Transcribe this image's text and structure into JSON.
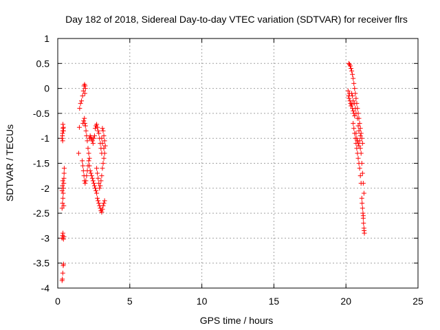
{
  "chart_data": {
    "type": "scatter",
    "title": "Day 182 of 2018, Sidereal Day-to-day VTEC variation (SDTVAR) for receiver flrs",
    "xlabel": "GPS time / hours",
    "ylabel": "SDTVAR / TECUs",
    "xlim": [
      0,
      25
    ],
    "ylim": [
      -4,
      1
    ],
    "xticks": [
      0,
      5,
      10,
      15,
      20,
      25
    ],
    "xtick_labels": [
      "0",
      "5",
      "10",
      "15",
      "20",
      "25"
    ],
    "yticks": [
      1,
      0.5,
      0,
      -0.5,
      -1,
      -1.5,
      -2,
      -2.5,
      -3,
      -3.5,
      -4
    ],
    "ytick_labels": [
      "1",
      "0.5",
      "0",
      "-0.5",
      "-1",
      "-1.5",
      "-2",
      "-2.5",
      "-3",
      "-3.5",
      "-4"
    ],
    "grid": true,
    "marker": "+",
    "marker_color": "#ff0000",
    "series": [
      {
        "name": "SDTVAR",
        "points": [
          [
            0.3,
            -3.85
          ],
          [
            0.32,
            -3.82
          ],
          [
            0.35,
            -3.7
          ],
          [
            0.38,
            -3.55
          ],
          [
            0.4,
            -3.52
          ],
          [
            0.3,
            -3.0
          ],
          [
            0.33,
            -2.95
          ],
          [
            0.36,
            -2.9
          ],
          [
            0.4,
            -3.02
          ],
          [
            0.43,
            -2.97
          ],
          [
            0.3,
            -2.4
          ],
          [
            0.33,
            -2.3
          ],
          [
            0.36,
            -2.2
          ],
          [
            0.38,
            -2.1
          ],
          [
            0.4,
            -2.0
          ],
          [
            0.42,
            -1.9
          ],
          [
            0.43,
            -1.8
          ],
          [
            0.44,
            -1.7
          ],
          [
            0.45,
            -1.6
          ],
          [
            0.42,
            -2.35
          ],
          [
            0.3,
            -2.05
          ],
          [
            0.32,
            -1.95
          ],
          [
            0.35,
            -1.85
          ],
          [
            0.3,
            -1.0
          ],
          [
            0.32,
            -0.95
          ],
          [
            0.33,
            -0.9
          ],
          [
            0.35,
            -0.85
          ],
          [
            0.37,
            -0.8
          ],
          [
            0.39,
            -0.78
          ],
          [
            0.4,
            -0.85
          ],
          [
            0.36,
            -0.72
          ],
          [
            0.34,
            -1.05
          ],
          [
            1.45,
            -1.3
          ],
          [
            1.5,
            -0.78
          ],
          [
            1.52,
            -0.4
          ],
          [
            1.58,
            -0.3
          ],
          [
            1.65,
            -0.25
          ],
          [
            1.72,
            -0.15
          ],
          [
            1.78,
            -0.05
          ],
          [
            1.82,
            0.05
          ],
          [
            1.86,
            0.08
          ],
          [
            1.9,
            0.05
          ],
          [
            1.92,
            0.0
          ],
          [
            1.88,
            -0.1
          ],
          [
            1.7,
            -1.45
          ],
          [
            1.74,
            -1.55
          ],
          [
            1.78,
            -1.65
          ],
          [
            1.82,
            -1.75
          ],
          [
            1.85,
            -1.85
          ],
          [
            1.9,
            -1.9
          ],
          [
            1.95,
            -1.85
          ],
          [
            2.0,
            -1.75
          ],
          [
            2.05,
            -1.65
          ],
          [
            2.1,
            -1.55
          ],
          [
            2.15,
            -1.45
          ],
          [
            1.75,
            -0.7
          ],
          [
            1.8,
            -0.65
          ],
          [
            1.85,
            -0.6
          ],
          [
            1.88,
            -0.7
          ],
          [
            1.92,
            -0.75
          ],
          [
            1.96,
            -0.85
          ],
          [
            2.0,
            -0.95
          ],
          [
            2.05,
            -1.05
          ],
          [
            2.1,
            -1.2
          ],
          [
            2.15,
            -1.3
          ],
          [
            2.2,
            -1.4
          ],
          [
            2.2,
            -1.55
          ],
          [
            2.25,
            -1.65
          ],
          [
            2.3,
            -1.7
          ],
          [
            2.35,
            -1.75
          ],
          [
            2.4,
            -1.8
          ],
          [
            2.45,
            -1.85
          ],
          [
            2.5,
            -1.9
          ],
          [
            2.55,
            -1.95
          ],
          [
            2.6,
            -2.0
          ],
          [
            2.65,
            -2.05
          ],
          [
            2.2,
            -1.0
          ],
          [
            2.25,
            -0.95
          ],
          [
            2.3,
            -0.98
          ],
          [
            2.35,
            -1.02
          ],
          [
            2.4,
            -1.05
          ],
          [
            2.45,
            -1.1
          ],
          [
            2.5,
            -1.0
          ],
          [
            2.55,
            -0.95
          ],
          [
            2.6,
            -0.8
          ],
          [
            2.65,
            -0.75
          ],
          [
            2.7,
            -0.72
          ],
          [
            2.75,
            -0.78
          ],
          [
            2.8,
            -0.85
          ],
          [
            2.85,
            -0.9
          ],
          [
            2.9,
            -1.0
          ],
          [
            2.95,
            -1.1
          ],
          [
            3.0,
            -1.2
          ],
          [
            3.05,
            -1.3
          ],
          [
            2.7,
            -2.1
          ],
          [
            2.75,
            -2.2
          ],
          [
            2.8,
            -2.25
          ],
          [
            2.85,
            -2.3
          ],
          [
            2.9,
            -2.35
          ],
          [
            2.95,
            -2.4
          ],
          [
            3.0,
            -2.45
          ],
          [
            3.05,
            -2.48
          ],
          [
            3.1,
            -2.42
          ],
          [
            3.15,
            -2.35
          ],
          [
            3.2,
            -2.3
          ],
          [
            3.25,
            -2.25
          ],
          [
            2.7,
            -1.6
          ],
          [
            2.75,
            -1.7
          ],
          [
            2.8,
            -1.8
          ],
          [
            2.85,
            -1.9
          ],
          [
            2.9,
            -2.0
          ],
          [
            2.95,
            -1.95
          ],
          [
            3.0,
            -1.85
          ],
          [
            3.05,
            -1.75
          ],
          [
            3.1,
            -1.6
          ],
          [
            3.15,
            -1.5
          ],
          [
            3.2,
            -1.4
          ],
          [
            3.25,
            -1.3
          ],
          [
            3.1,
            -0.8
          ],
          [
            3.15,
            -0.85
          ],
          [
            3.2,
            -0.95
          ],
          [
            3.25,
            -1.05
          ],
          [
            3.3,
            -1.15
          ],
          [
            3.2,
            -1.2
          ],
          [
            3.1,
            -1.1
          ],
          [
            3.05,
            -1.0
          ],
          [
            20.2,
            0.5
          ],
          [
            20.25,
            0.48
          ],
          [
            20.3,
            0.45
          ],
          [
            20.35,
            0.4
          ],
          [
            20.4,
            0.35
          ],
          [
            20.45,
            0.28
          ],
          [
            20.5,
            0.2
          ],
          [
            20.55,
            0.1
          ],
          [
            20.6,
            0.0
          ],
          [
            20.65,
            -0.1
          ],
          [
            20.7,
            -0.2
          ],
          [
            20.75,
            -0.3
          ],
          [
            20.8,
            -0.4
          ],
          [
            20.85,
            -0.5
          ],
          [
            20.9,
            -0.6
          ],
          [
            20.95,
            -0.7
          ],
          [
            21.0,
            -0.8
          ],
          [
            21.05,
            -0.9
          ],
          [
            21.1,
            -1.0
          ],
          [
            21.15,
            -1.1
          ],
          [
            20.15,
            -0.05
          ],
          [
            20.18,
            -0.15
          ],
          [
            20.22,
            -0.2
          ],
          [
            20.25,
            -0.1
          ],
          [
            20.28,
            -0.25
          ],
          [
            20.32,
            -0.3
          ],
          [
            20.35,
            -0.35
          ],
          [
            20.4,
            -0.32
          ],
          [
            20.45,
            -0.4
          ],
          [
            20.5,
            -0.45
          ],
          [
            20.55,
            -0.5
          ],
          [
            20.6,
            -0.55
          ],
          [
            20.5,
            -0.7
          ],
          [
            20.55,
            -0.8
          ],
          [
            20.6,
            -0.9
          ],
          [
            20.65,
            -1.0
          ],
          [
            20.7,
            -1.1
          ],
          [
            20.75,
            -1.2
          ],
          [
            20.8,
            -1.3
          ],
          [
            20.85,
            -1.4
          ],
          [
            20.9,
            -1.5
          ],
          [
            20.95,
            -1.6
          ],
          [
            21.0,
            -1.75
          ],
          [
            21.05,
            -1.9
          ],
          [
            20.7,
            -0.9
          ],
          [
            20.75,
            -1.0
          ],
          [
            20.8,
            -1.05
          ],
          [
            20.85,
            -1.1
          ],
          [
            20.9,
            -1.15
          ],
          [
            20.95,
            -1.05
          ],
          [
            21.0,
            -1.2
          ],
          [
            21.05,
            -1.3
          ],
          [
            21.1,
            -1.5
          ],
          [
            21.15,
            -1.7
          ],
          [
            21.2,
            -1.9
          ],
          [
            21.25,
            -2.1
          ],
          [
            21.1,
            -2.2
          ],
          [
            21.12,
            -2.3
          ],
          [
            21.15,
            -2.4
          ],
          [
            21.18,
            -2.5
          ],
          [
            21.2,
            -2.6
          ],
          [
            21.22,
            -2.7
          ],
          [
            21.25,
            -2.8
          ],
          [
            21.28,
            -2.9
          ],
          [
            21.26,
            -2.85
          ],
          [
            21.2,
            -2.55
          ],
          [
            20.4,
            -0.1
          ],
          [
            20.45,
            -0.15
          ],
          [
            20.5,
            -0.25
          ],
          [
            20.6,
            -0.3
          ],
          [
            20.65,
            -0.4
          ],
          [
            20.7,
            -0.5
          ],
          [
            20.8,
            -0.6
          ],
          [
            20.85,
            -0.75
          ],
          [
            20.9,
            -0.85
          ],
          [
            21.0,
            -0.95
          ]
        ]
      }
    ]
  }
}
